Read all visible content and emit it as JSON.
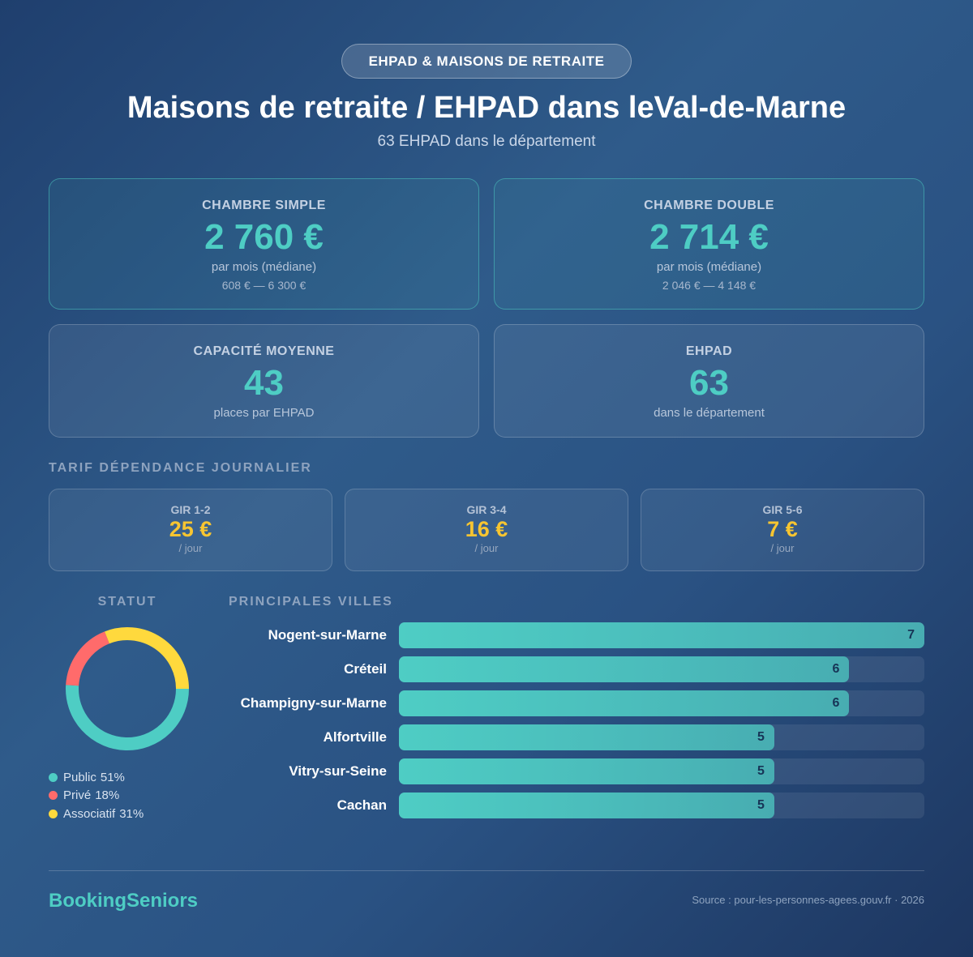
{
  "badge": "EHPAD & MAISONS DE RETRAITE",
  "title": "Maisons de retraite / EHPAD dans leVal-de-Marne",
  "subtitle": "63 EHPAD dans le département",
  "cards": [
    {
      "label": "CHAMBRE SIMPLE",
      "value": "2 760 €",
      "note": "par mois (médiane)",
      "range": "608 € — 6 300 €"
    },
    {
      "label": "CHAMBRE DOUBLE",
      "value": "2 714 €",
      "note": "par mois (médiane)",
      "range": "2 046 € — 4 148 €"
    },
    {
      "label": "CAPACITÉ MOYENNE",
      "value": "43",
      "note": "places par EHPAD"
    },
    {
      "label": "EHPAD",
      "value": "63",
      "note": "dans le département"
    }
  ],
  "tarif": {
    "title": "TARIF DÉPENDANCE JOURNALIER",
    "items": [
      {
        "label": "GIR 1-2",
        "value": "25 €",
        "unit": "/ jour"
      },
      {
        "label": "GIR 3-4",
        "value": "16 €",
        "unit": "/ jour"
      },
      {
        "label": "GIR 5-6",
        "value": "7 €",
        "unit": "/ jour"
      }
    ]
  },
  "chart_data": [
    {
      "type": "donut",
      "title": "STATUT",
      "categories": [
        "Public",
        "Privé",
        "Associatif"
      ],
      "values": [
        51,
        18,
        31
      ],
      "value_labels": [
        "51%",
        "18%",
        "31%"
      ],
      "colors": [
        "#4ecdc4",
        "#ff6b6b",
        "#ffd93d"
      ]
    },
    {
      "type": "hbar",
      "title": "PRINCIPALES VILLES",
      "categories": [
        "Nogent-sur-Marne",
        "Créteil",
        "Champigny-sur-Marne",
        "Alfortville",
        "Vitry-sur-Seine",
        "Cachan"
      ],
      "values": [
        7,
        6,
        6,
        5,
        5,
        5
      ],
      "xlim": [
        0,
        7
      ],
      "color": "#4ecdc4"
    }
  ],
  "footer": {
    "brand": "BookingSeniors",
    "source": "Source : pour-les-personnes-agees.gouv.fr · 2026"
  }
}
